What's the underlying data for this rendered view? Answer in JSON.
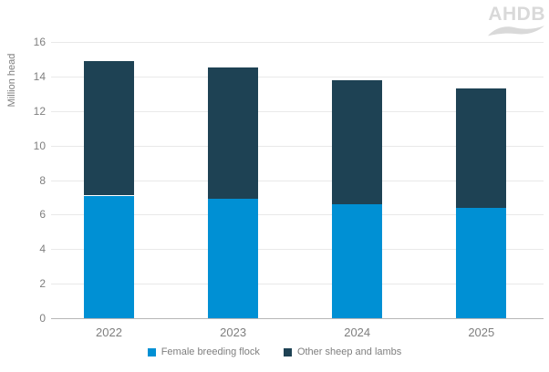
{
  "logo": {
    "text": "AHDB"
  },
  "colors": {
    "female_breeding_flock": "#0090d4",
    "other_sheep_and_lambs": "#1e4254",
    "axis_text": "#7f7f7f",
    "gridline": "#e9e9e9",
    "axis_line": "#b7b7b7",
    "logo_gray": "#d9d9d9"
  },
  "chart_data": {
    "type": "bar",
    "stacked": true,
    "title": "",
    "xlabel": "",
    "ylabel": "Million head",
    "categories": [
      "2022",
      "2023",
      "2024",
      "2025"
    ],
    "series": [
      {
        "name": "Female breeding flock",
        "color": "#0090d4",
        "values": [
          7.1,
          6.9,
          6.6,
          6.4
        ]
      },
      {
        "name": "Other sheep and lambs",
        "color": "#1e4254",
        "values": [
          7.8,
          7.6,
          7.2,
          6.9
        ]
      }
    ],
    "totals": [
      14.9,
      14.5,
      13.8,
      13.3
    ],
    "ylim": [
      0,
      16
    ],
    "ytick_step": 2,
    "grid": true,
    "legend_position": "bottom"
  }
}
